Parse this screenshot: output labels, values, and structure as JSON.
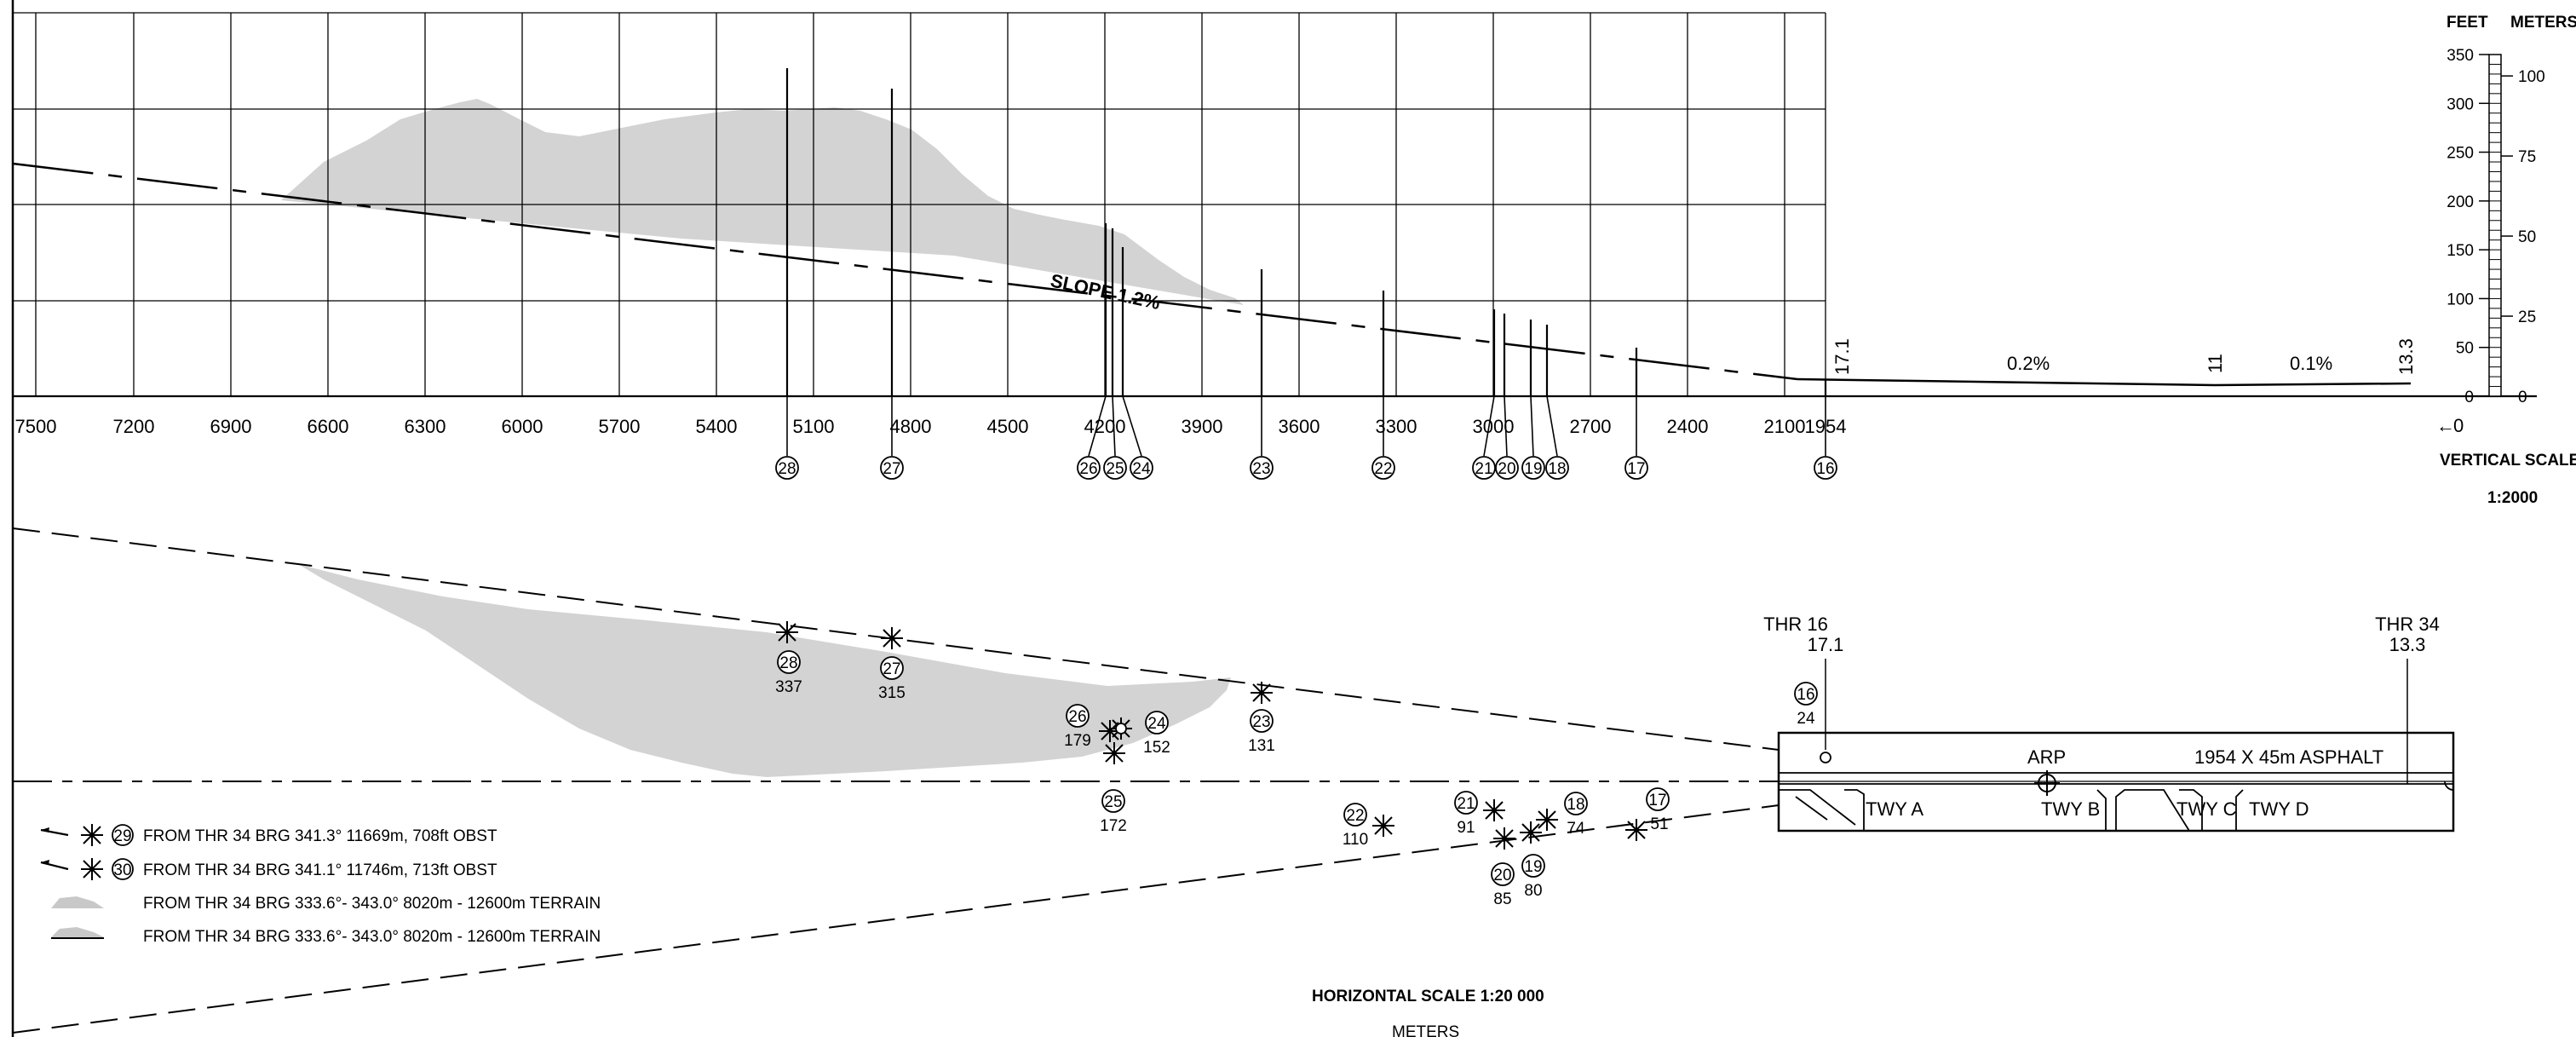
{
  "profile": {
    "x_ticks": [
      "7500",
      "7200",
      "6900",
      "6600",
      "6300",
      "6000",
      "5700",
      "5400",
      "5100",
      "4800",
      "4500",
      "4200",
      "3900",
      "3600",
      "3300",
      "3000",
      "2700",
      "2400",
      "2100",
      "1954"
    ],
    "slope_label": "SLOPE 1.2%",
    "thr16_elev": "17.1",
    "runway_mid_elev": "11",
    "thr34_elev": "13.3",
    "slope_a": "0.2%",
    "slope_b": "0.1%",
    "zero_label": "0",
    "obstacles": [
      {
        "id": "28"
      },
      {
        "id": "27"
      },
      {
        "id": "26"
      },
      {
        "id": "25"
      },
      {
        "id": "24"
      },
      {
        "id": "23"
      },
      {
        "id": "22"
      },
      {
        "id": "21"
      },
      {
        "id": "20"
      },
      {
        "id": "19"
      },
      {
        "id": "18"
      },
      {
        "id": "17"
      },
      {
        "id": "16"
      }
    ]
  },
  "vertical_scale": {
    "feet_header": "FEET",
    "meters_header": "METERS",
    "feet_ticks": [
      "350",
      "300",
      "250",
      "200",
      "150",
      "100",
      "50",
      "0"
    ],
    "meter_ticks": [
      "100",
      "75",
      "50",
      "25",
      "0"
    ],
    "title": "VERTICAL SCALE",
    "ratio": "1:2000"
  },
  "plan": {
    "thr16": {
      "label": "THR 16",
      "elev": "17.1"
    },
    "thr34": {
      "label": "THR 34",
      "elev": "13.3"
    },
    "runway_label": "1954 X 45m ASPHALT",
    "arp_label": "ARP",
    "taxiways": [
      "TWY A",
      "TWY B",
      "TWY C",
      "TWY D"
    ],
    "obstacles": [
      {
        "id": "28",
        "elev": "337"
      },
      {
        "id": "27",
        "elev": "315"
      },
      {
        "id": "26",
        "elev": "179"
      },
      {
        "id": "24",
        "elev": "152"
      },
      {
        "id": "23",
        "elev": "131"
      },
      {
        "id": "25",
        "elev": "172"
      },
      {
        "id": "22",
        "elev": "110"
      },
      {
        "id": "21",
        "elev": "91"
      },
      {
        "id": "18",
        "elev": "74"
      },
      {
        "id": "17",
        "elev": "51"
      },
      {
        "id": "20",
        "elev": "85"
      },
      {
        "id": "19",
        "elev": "80"
      },
      {
        "id": "16",
        "elev": "24"
      }
    ]
  },
  "legend": [
    {
      "num": "29",
      "text": "FROM THR 34 BRG 341.3° 11669m, 708ft OBST"
    },
    {
      "num": "30",
      "text": "FROM THR 34 BRG 341.1° 11746m, 713ft OBST"
    },
    {
      "num": "",
      "text": "FROM THR 34 BRG 333.6°- 343.0° 8020m - 12600m TERRAIN"
    },
    {
      "num": "",
      "text": "FROM THR 34 BRG 333.6°- 343.0° 8020m - 12600m TERRAIN"
    }
  ],
  "horizontal_scale": {
    "title": "HORIZONTAL SCALE 1:20 000",
    "unit": "METERS"
  }
}
